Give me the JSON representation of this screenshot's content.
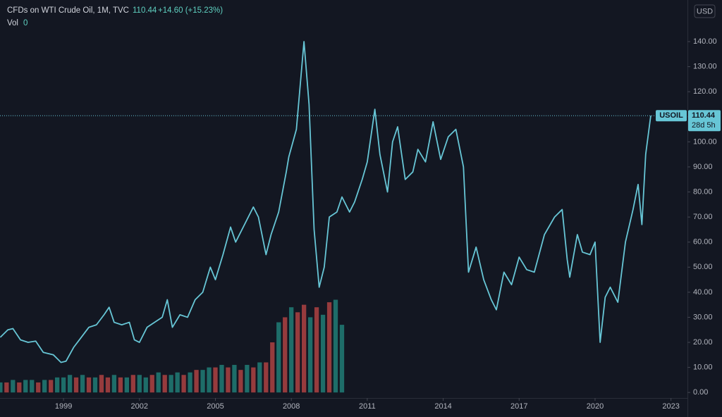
{
  "chart_data": {
    "type": "line",
    "title": "CFDs on WTI Crude Oil, 1M, TVC",
    "last_price": {
      "value": 110.44,
      "label": "110.44"
    },
    "change": "+14.60 (+15.23%)",
    "volume_label": "Vol",
    "volume_value": "0",
    "currency": "USD",
    "symbol": "USOIL",
    "countdown": "28d 5h",
    "grid": false,
    "xlim": [
      1996.49,
      2023.65
    ],
    "ylim": [
      -2.2,
      156.6
    ],
    "xticks": [
      1999,
      2002,
      2005,
      2008,
      2011,
      2014,
      2017,
      2020,
      2023
    ],
    "yticks": [
      {
        "value": 0,
        "label": "0.00"
      },
      {
        "value": 10,
        "label": "10.00"
      },
      {
        "value": 20,
        "label": "20.00"
      },
      {
        "value": 30,
        "label": "30.00"
      },
      {
        "value": 40,
        "label": "40.00"
      },
      {
        "value": 50,
        "label": "50.00"
      },
      {
        "value": 60,
        "label": "60.00"
      },
      {
        "value": 70,
        "label": "70.00"
      },
      {
        "value": 80,
        "label": "80.00"
      },
      {
        "value": 90,
        "label": "90.00"
      },
      {
        "value": 100,
        "label": "100.00"
      },
      {
        "value": 110,
        "label": "110.00"
      },
      {
        "value": 120,
        "label": "120.00"
      },
      {
        "value": 130,
        "label": "130.00"
      },
      {
        "value": 140,
        "label": "140.00"
      }
    ],
    "series": [
      {
        "name": "USOIL",
        "color": "#67c6d6",
        "x": [
          1996.5,
          1996.8,
          1997.0,
          1997.3,
          1997.6,
          1997.9,
          1998.2,
          1998.6,
          1998.9,
          1999.1,
          1999.4,
          1999.7,
          2000.0,
          2000.3,
          2000.6,
          2000.8,
          2001.0,
          2001.3,
          2001.6,
          2001.8,
          2002.0,
          2002.3,
          2002.6,
          2002.9,
          2003.1,
          2003.3,
          2003.6,
          2003.9,
          2004.2,
          2004.5,
          2004.8,
          2005.0,
          2005.3,
          2005.6,
          2005.8,
          2006.1,
          2006.5,
          2006.7,
          2007.0,
          2007.2,
          2007.5,
          2007.8,
          2007.9,
          2008.2,
          2008.5,
          2008.7,
          2008.9,
          2009.1,
          2009.3,
          2009.5,
          2009.8,
          2010.0,
          2010.3,
          2010.5,
          2010.8,
          2011.0,
          2011.3,
          2011.5,
          2011.8,
          2012.0,
          2012.2,
          2012.5,
          2012.8,
          2013.0,
          2013.3,
          2013.6,
          2013.9,
          2014.2,
          2014.5,
          2014.8,
          2015.0,
          2015.3,
          2015.6,
          2015.9,
          2016.1,
          2016.4,
          2016.7,
          2017.0,
          2017.3,
          2017.6,
          2018.0,
          2018.4,
          2018.7,
          2018.9,
          2019.0,
          2019.3,
          2019.5,
          2019.8,
          2020.0,
          2020.2,
          2020.4,
          2020.6,
          2020.9,
          2021.2,
          2021.5,
          2021.7,
          2021.85,
          2022.0,
          2022.2
        ],
        "values": [
          22,
          25,
          25.5,
          21,
          20,
          20.5,
          16,
          15,
          12,
          12.5,
          18,
          22,
          26,
          27,
          31,
          34,
          28,
          27,
          28,
          21,
          20,
          26,
          28,
          30,
          37,
          26,
          31,
          30,
          37,
          40,
          50,
          45,
          55,
          66,
          60,
          66,
          74,
          70,
          55,
          63,
          72,
          88,
          94,
          105,
          140,
          115,
          65,
          42,
          50,
          70,
          72,
          78,
          72,
          76,
          85,
          92,
          113,
          95,
          80,
          100,
          106,
          85,
          88,
          97,
          92,
          108,
          93,
          102,
          105,
          90,
          48,
          58,
          45,
          37,
          33,
          48,
          43,
          54,
          49,
          48,
          63,
          70,
          73,
          53,
          46,
          63,
          56,
          55,
          60,
          20,
          38,
          42,
          36,
          60,
          73,
          83,
          67,
          95,
          110.44
        ]
      }
    ],
    "volume": {
      "x": [
        1996.5,
        1996.75,
        1997.0,
        1997.25,
        1997.5,
        1997.75,
        1998.0,
        1998.25,
        1998.5,
        1998.75,
        1999.0,
        1999.25,
        1999.5,
        1999.75,
        2000.0,
        2000.25,
        2000.5,
        2000.75,
        2001.0,
        2001.25,
        2001.5,
        2001.75,
        2002.0,
        2002.25,
        2002.5,
        2002.75,
        2003.0,
        2003.25,
        2003.5,
        2003.75,
        2004.0,
        2004.25,
        2004.5,
        2004.75,
        2005.0,
        2005.25,
        2005.5,
        2005.75,
        2006.0,
        2006.25,
        2006.5,
        2006.75,
        2007.0,
        2007.25,
        2007.5,
        2007.75,
        2008.0,
        2008.25,
        2008.5,
        2008.75,
        2009.0,
        2009.25,
        2009.5,
        2009.75,
        2010.0
      ],
      "values": [
        4,
        4,
        5,
        4,
        5,
        5,
        4,
        5,
        5,
        6,
        6,
        7,
        6,
        7,
        6,
        6,
        7,
        6,
        7,
        6,
        6,
        7,
        7,
        6,
        7,
        8,
        7,
        7,
        8,
        7,
        8,
        9,
        9,
        10,
        10,
        11,
        10,
        11,
        9,
        11,
        10,
        12,
        12,
        20,
        28,
        30,
        34,
        32,
        35,
        30,
        34,
        31,
        36,
        37,
        27
      ],
      "colors": [
        "#26a69a",
        "#ef5350",
        "#26a69a",
        "#ef5350",
        "#26a69a",
        "#26a69a",
        "#ef5350",
        "#26a69a",
        "#ef5350",
        "#26a69a",
        "#26a69a",
        "#26a69a",
        "#ef5350",
        "#26a69a",
        "#ef5350",
        "#26a69a",
        "#ef5350",
        "#ef5350",
        "#26a69a",
        "#ef5350",
        "#26a69a",
        "#ef5350",
        "#26a69a",
        "#26a69a",
        "#ef5350",
        "#26a69a",
        "#ef5350",
        "#26a69a",
        "#26a69a",
        "#ef5350",
        "#26a69a",
        "#ef5350",
        "#26a69a",
        "#26a69a",
        "#ef5350",
        "#26a69a",
        "#ef5350",
        "#26a69a",
        "#ef5350",
        "#26a69a",
        "#ef5350",
        "#26a69a",
        "#ef5350",
        "#ef5350",
        "#26a69a",
        "#ef5350",
        "#26a69a",
        "#ef5350",
        "#ef5350",
        "#26a69a",
        "#ef5350",
        "#26a69a",
        "#ef5350",
        "#26a69a",
        "#26a69a"
      ]
    }
  }
}
